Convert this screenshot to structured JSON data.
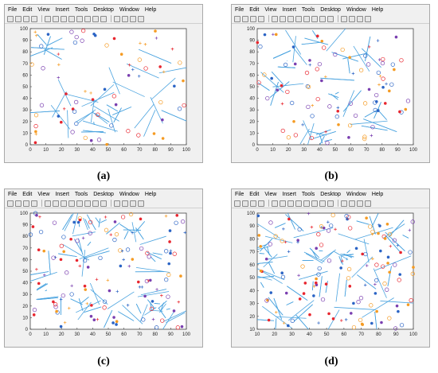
{
  "menu": [
    "File",
    "Edit",
    "View",
    "Insert",
    "Tools",
    "Desktop",
    "Window",
    "Help"
  ],
  "toolbar_icons": [
    "new-file-icon",
    "open-folder-icon",
    "save-icon",
    "print-icon",
    "arrow-pointer-icon",
    "zoom-in-icon",
    "zoom-out-icon",
    "pan-hand-icon",
    "rotate-3d-icon",
    "data-cursor-icon",
    "brush-icon",
    "link-icon",
    "colorbar-icon",
    "legend-icon",
    "grid-icon",
    "plot-tools-icon"
  ],
  "panels": [
    {
      "id": "a",
      "caption": "(a)"
    },
    {
      "id": "b",
      "caption": "(b)"
    },
    {
      "id": "c",
      "caption": "(c)"
    },
    {
      "id": "d",
      "caption": "(d)"
    }
  ],
  "chart_data": [
    {
      "type": "scatter",
      "panel": "a",
      "xlim": [
        0,
        100
      ],
      "ylim": [
        0,
        100
      ],
      "xticks": [
        "0",
        "10",
        "20",
        "30",
        "40",
        "50",
        "60",
        "70",
        "80",
        "90",
        "100"
      ],
      "yticks": [
        "0",
        "10",
        "20",
        "30",
        "40",
        "50",
        "60",
        "70",
        "80",
        "90",
        "100"
      ],
      "colors": {
        "edges": "#4aa3df",
        "marker_red": "#e8262f",
        "marker_orange": "#f59b23",
        "marker_blue": "#2b64c5",
        "marker_purple": "#7a3fb0"
      }
    },
    {
      "type": "scatter",
      "panel": "b",
      "xlim": [
        0,
        100
      ],
      "ylim": [
        0,
        100
      ],
      "xticks": [
        "0",
        "10",
        "20",
        "30",
        "40",
        "50",
        "60",
        "70",
        "80",
        "90",
        "100"
      ],
      "yticks": [
        "0",
        "10",
        "20",
        "30",
        "40",
        "50",
        "60",
        "70",
        "80",
        "90",
        "100"
      ]
    },
    {
      "type": "scatter",
      "panel": "c",
      "xlim": [
        0,
        100
      ],
      "ylim": [
        0,
        100
      ],
      "xticks": [
        "0",
        "10",
        "20",
        "30",
        "40",
        "50",
        "60",
        "70",
        "80",
        "90",
        "100"
      ],
      "yticks": [
        "0",
        "10",
        "20",
        "30",
        "40",
        "50",
        "60",
        "70",
        "80",
        "90",
        "100"
      ]
    },
    {
      "type": "scatter",
      "panel": "d",
      "xlim": [
        10,
        100
      ],
      "ylim": [
        10,
        100
      ],
      "xticks": [
        "10",
        "20",
        "30",
        "40",
        "50",
        "60",
        "70",
        "80",
        "90",
        "100"
      ],
      "yticks": [
        "10",
        "20",
        "30",
        "40",
        "50",
        "60",
        "70",
        "80",
        "90",
        "100"
      ]
    }
  ]
}
